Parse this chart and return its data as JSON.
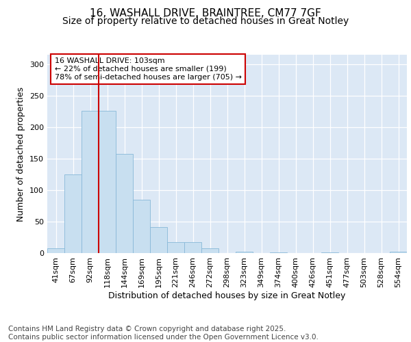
{
  "title_line1": "16, WASHALL DRIVE, BRAINTREE, CM77 7GF",
  "title_line2": "Size of property relative to detached houses in Great Notley",
  "xlabel": "Distribution of detached houses by size in Great Notley",
  "ylabel": "Number of detached properties",
  "categories": [
    "41sqm",
    "67sqm",
    "92sqm",
    "118sqm",
    "144sqm",
    "169sqm",
    "195sqm",
    "221sqm",
    "246sqm",
    "272sqm",
    "298sqm",
    "323sqm",
    "349sqm",
    "374sqm",
    "400sqm",
    "426sqm",
    "451sqm",
    "477sqm",
    "503sqm",
    "528sqm",
    "554sqm"
  ],
  "values": [
    8,
    125,
    226,
    226,
    157,
    85,
    41,
    17,
    17,
    8,
    0,
    2,
    0,
    1,
    0,
    0,
    1,
    0,
    0,
    0,
    2
  ],
  "bar_color": "#c8dff0",
  "bar_edgecolor": "#88b8d8",
  "plot_bg_color": "#dce8f5",
  "fig_bg_color": "#ffffff",
  "vline_color": "#cc0000",
  "vline_x_index": 2.5,
  "annotation_text": "16 WASHALL DRIVE: 103sqm\n← 22% of detached houses are smaller (199)\n78% of semi-detached houses are larger (705) →",
  "annotation_box_edgecolor": "#cc0000",
  "ylim": [
    0,
    315
  ],
  "yticks": [
    0,
    50,
    100,
    150,
    200,
    250,
    300
  ],
  "footnote": "Contains HM Land Registry data © Crown copyright and database right 2025.\nContains public sector information licensed under the Open Government Licence v3.0.",
  "title_fontsize": 11,
  "subtitle_fontsize": 10,
  "axis_label_fontsize": 9,
  "tick_fontsize": 8,
  "annotation_fontsize": 8,
  "footnote_fontsize": 7.5
}
